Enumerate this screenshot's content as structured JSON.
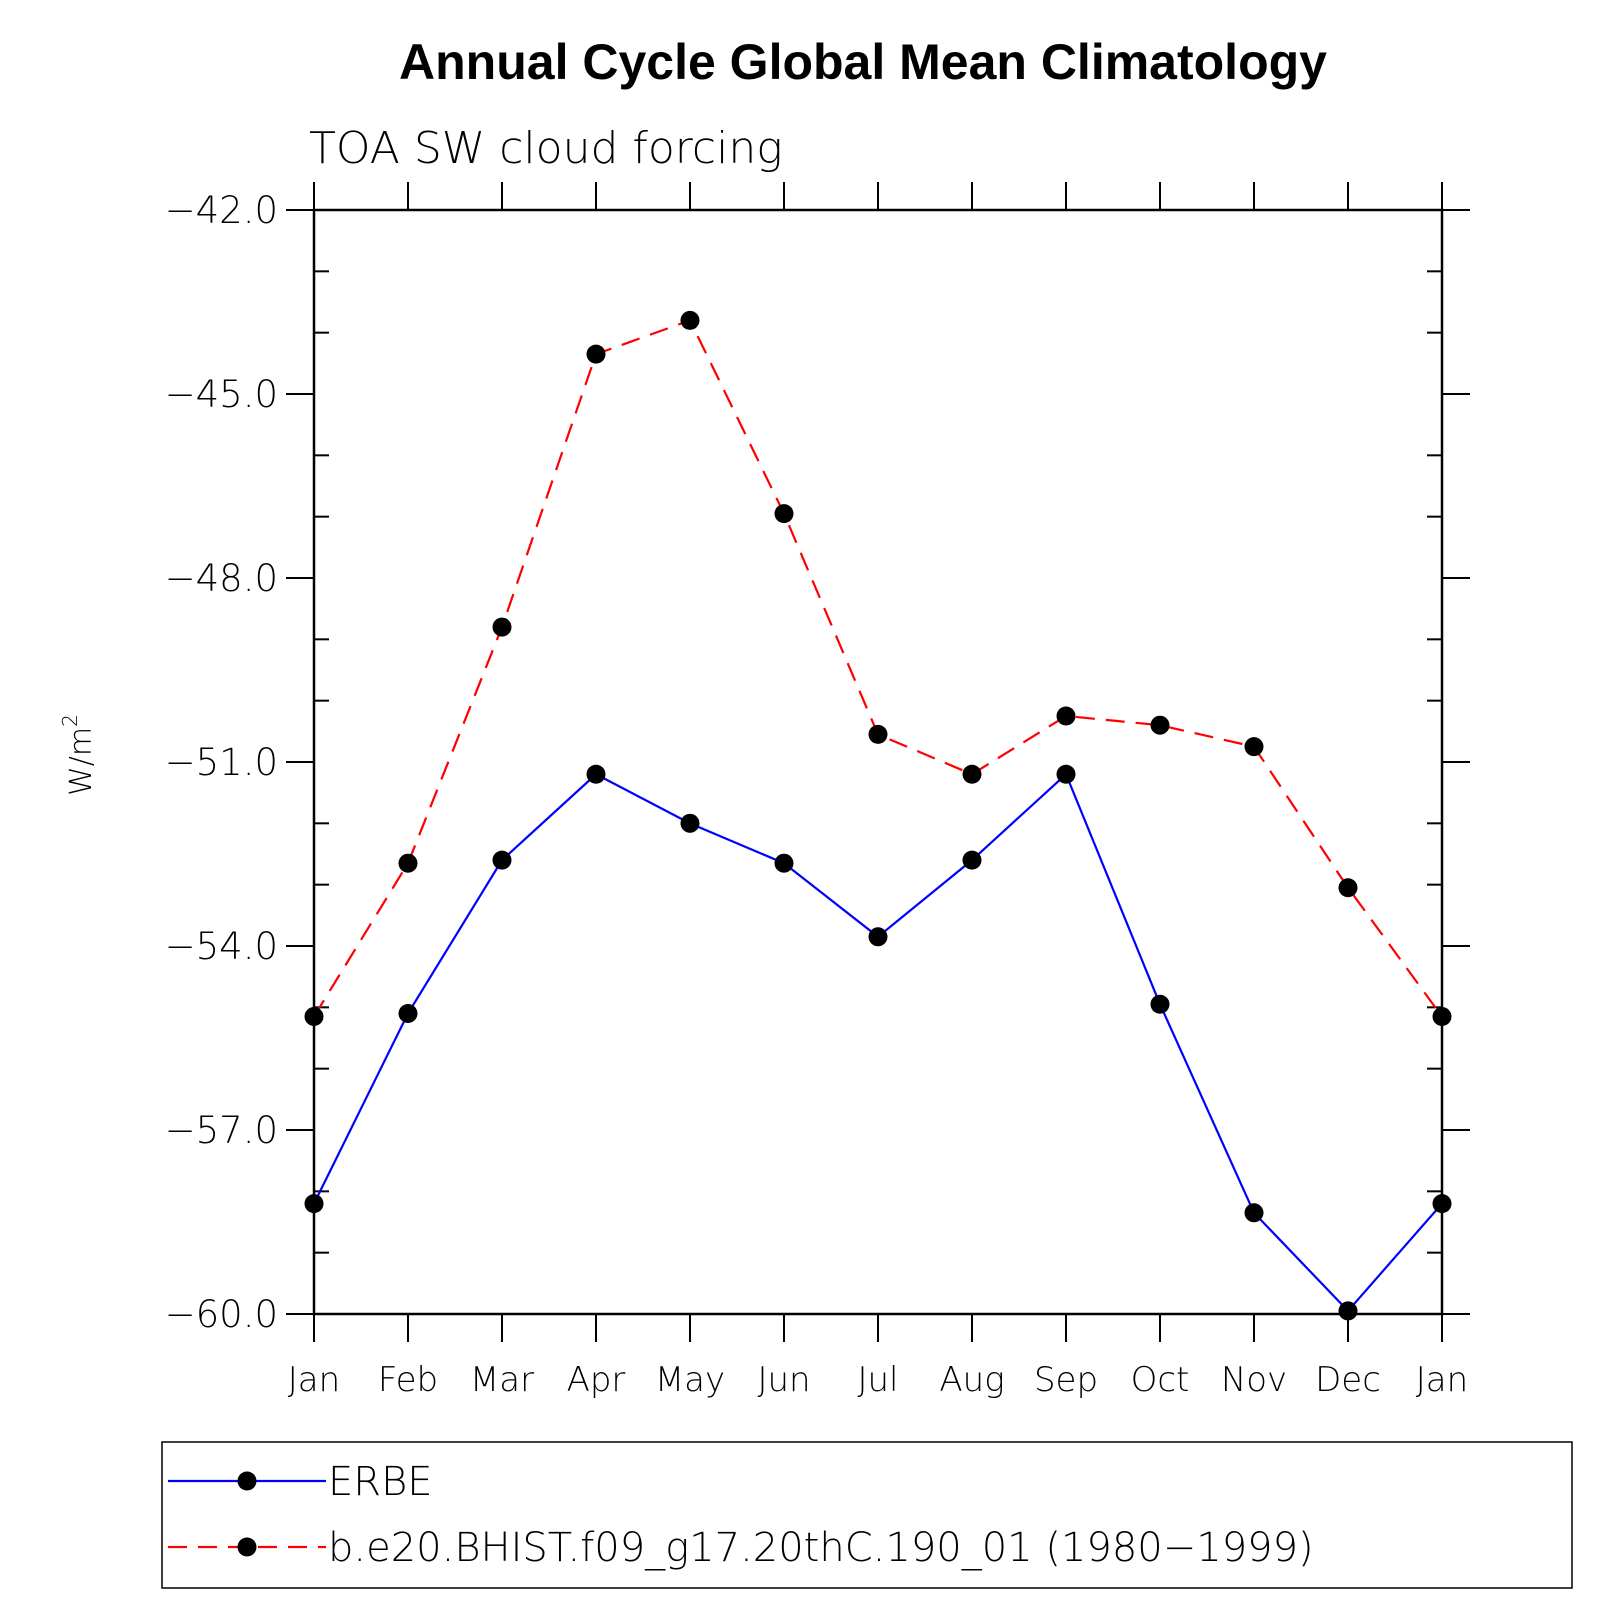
{
  "chart_data": {
    "type": "line",
    "title": "Annual Cycle Global Mean Climatology",
    "subtitle": "TOA SW cloud forcing",
    "ylabel": "W/m",
    "ylabel_sup": "2",
    "ylim": [
      -60,
      -42
    ],
    "yticks": [
      -42,
      -45,
      -48,
      -51,
      -54,
      -57,
      -60
    ],
    "ytick_labels": [
      "−42.0",
      "−45.0",
      "−48.0",
      "−51.0",
      "−54.0",
      "−57.0",
      "−60.0"
    ],
    "categories": [
      "Jan",
      "Feb",
      "Mar",
      "Apr",
      "May",
      "Jun",
      "Jul",
      "Aug",
      "Sep",
      "Oct",
      "Nov",
      "Dec",
      "Jan"
    ],
    "grid": false,
    "legend_position": "bottom",
    "series": [
      {
        "name": "ERBE",
        "color": "#0000ff",
        "style": "solid",
        "values": [
          -58.2,
          -55.1,
          -52.6,
          -51.2,
          -52.0,
          -52.65,
          -53.85,
          -52.6,
          -51.2,
          -54.95,
          -58.35,
          -59.95,
          -58.2
        ]
      },
      {
        "name": "b.e20.BHIST.f09_g17.20thC.190_01 (1980−1999)",
        "color": "#ff0000",
        "style": "dashed",
        "values": [
          -55.15,
          -52.65,
          -48.8,
          -44.35,
          -43.8,
          -46.95,
          -50.55,
          -51.2,
          -50.25,
          -50.4,
          -50.75,
          -53.05,
          -55.15
        ]
      }
    ]
  }
}
